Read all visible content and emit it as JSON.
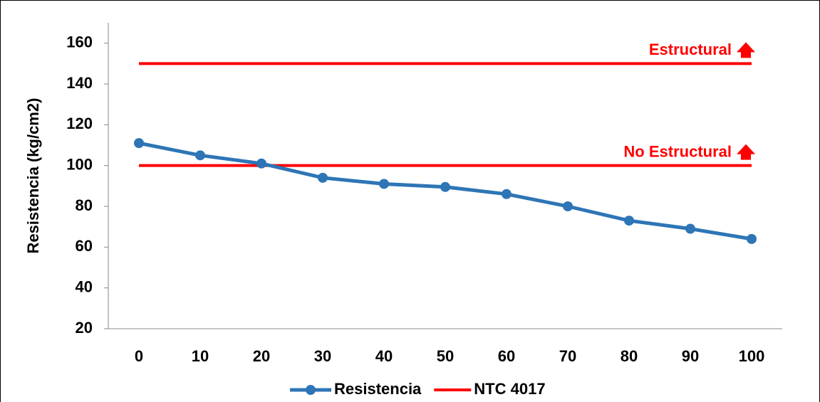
{
  "chart_data": {
    "type": "line",
    "y_label": "Resistencia (kg/cm2)",
    "categories": [
      "0",
      "10",
      "20",
      "30",
      "40",
      "50",
      "60",
      "70",
      "80",
      "90",
      "100"
    ],
    "series": [
      {
        "name": "Resistencia",
        "color": "#2e75b6",
        "values": [
          111,
          105,
          101,
          94,
          91,
          89.5,
          86,
          80,
          73,
          69,
          64
        ]
      }
    ],
    "reference": {
      "name": "NTC 4017",
      "color": "#ff0000",
      "lines": [
        {
          "value": 150,
          "label": "Estructural"
        },
        {
          "value": 100,
          "label": "No Estructural"
        }
      ]
    },
    "ylim": [
      20,
      170
    ],
    "yticks": [
      20,
      40,
      60,
      80,
      100,
      120,
      140,
      160
    ],
    "grid": false,
    "legend": "bottom"
  }
}
